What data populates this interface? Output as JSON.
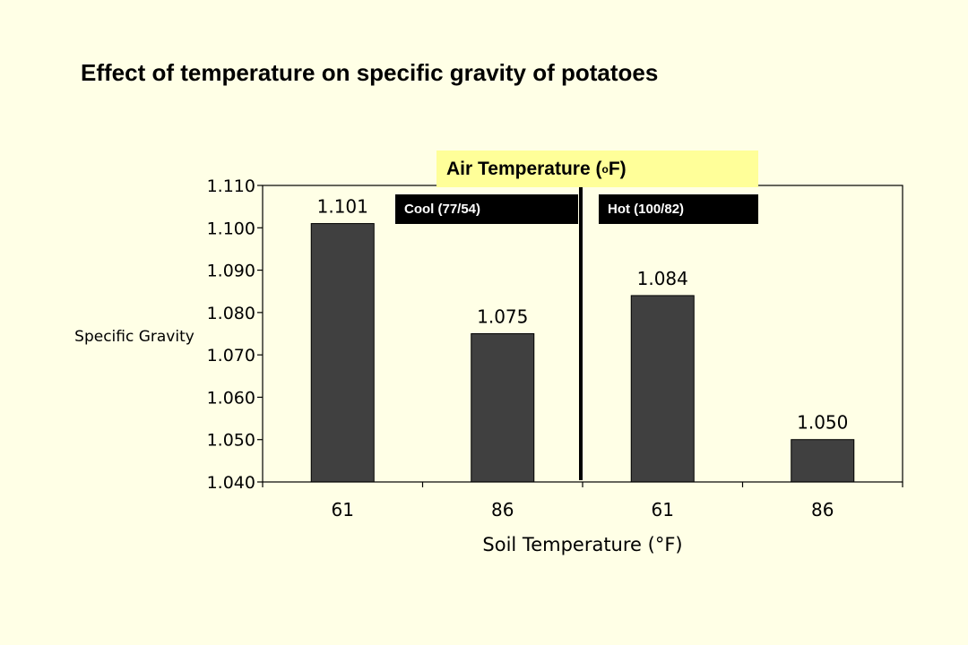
{
  "title": "Effect of temperature on specific gravity of potatoes",
  "air_temperature": {
    "label": "Air Temperature (",
    "unit_sup": "o",
    "unit_rest": "F)"
  },
  "groups": [
    {
      "label": "Cool (77/54)"
    },
    {
      "label": "Hot (100/82)"
    }
  ],
  "chart_data": {
    "type": "bar",
    "categories": [
      "61",
      "86",
      "61",
      "86"
    ],
    "values": [
      1.101,
      1.075,
      1.084,
      1.05
    ],
    "data_labels": [
      "1.101",
      "1.075",
      "1.084",
      "1.050"
    ],
    "xlabel": "Soil Temperature (°F)",
    "ylabel": "Specific Gravity",
    "ylim": [
      1.04,
      1.11
    ],
    "yticks": [
      1.04,
      1.05,
      1.06,
      1.07,
      1.08,
      1.09,
      1.1,
      1.11
    ],
    "ytick_labels": [
      "1.040",
      "1.050",
      "1.060",
      "1.070",
      "1.080",
      "1.090",
      "1.100",
      "1.110"
    ],
    "bar_color": "#404040",
    "grid": false,
    "legend": "none"
  }
}
